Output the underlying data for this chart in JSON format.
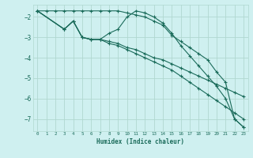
{
  "xlabel": "Humidex (Indice chaleur)",
  "background_color": "#cff0f0",
  "grid_color": "#b0d8d0",
  "line_color": "#1a6b5a",
  "xlim": [
    -0.5,
    23.5
  ],
  "ylim": [
    -7.6,
    -1.4
  ],
  "yticks": [
    -7,
    -6,
    -5,
    -4,
    -3,
    -2
  ],
  "xticks": [
    0,
    1,
    2,
    3,
    4,
    5,
    6,
    7,
    8,
    9,
    10,
    11,
    12,
    13,
    14,
    15,
    16,
    17,
    18,
    19,
    20,
    21,
    22,
    23
  ],
  "series": [
    {
      "x": [
        0,
        1,
        2,
        3,
        4,
        5,
        6,
        7,
        8,
        9,
        10,
        11,
        12,
        13,
        14,
        15,
        16,
        17,
        18,
        19,
        20,
        21,
        22,
        23
      ],
      "y": [
        -1.7,
        -1.7,
        -1.7,
        -1.7,
        -1.7,
        -1.7,
        -1.7,
        -1.7,
        -1.7,
        -1.7,
        -1.8,
        -1.9,
        -2.0,
        -2.2,
        -2.4,
        -2.9,
        -3.2,
        -3.5,
        -3.8,
        -4.1,
        -4.7,
        -5.2,
        -7.0,
        -7.4
      ]
    },
    {
      "x": [
        0,
        3,
        4,
        5,
        6,
        7,
        8,
        9,
        10,
        11,
        12,
        13,
        14,
        15,
        16,
        17,
        18,
        19,
        20,
        21,
        22,
        23
      ],
      "y": [
        -1.7,
        -2.6,
        -2.2,
        -3.0,
        -3.1,
        -3.1,
        -2.8,
        -2.6,
        -2.0,
        -1.7,
        -1.8,
        -2.0,
        -2.3,
        -2.8,
        -3.4,
        -3.9,
        -4.4,
        -4.9,
        -5.4,
        -6.0,
        -7.0,
        -7.4
      ]
    },
    {
      "x": [
        0,
        3,
        4,
        5,
        6,
        7,
        8,
        9,
        10,
        11,
        12,
        13,
        14,
        15,
        16,
        17,
        18,
        19,
        20,
        21,
        22,
        23
      ],
      "y": [
        -1.7,
        -2.6,
        -2.2,
        -3.0,
        -3.1,
        -3.1,
        -3.2,
        -3.3,
        -3.5,
        -3.6,
        -3.8,
        -4.0,
        -4.1,
        -4.3,
        -4.5,
        -4.7,
        -4.9,
        -5.1,
        -5.3,
        -5.5,
        -5.7,
        -5.9
      ]
    },
    {
      "x": [
        0,
        3,
        4,
        5,
        6,
        7,
        8,
        9,
        10,
        11,
        12,
        13,
        14,
        15,
        16,
        17,
        18,
        19,
        20,
        21,
        22,
        23
      ],
      "y": [
        -1.7,
        -2.6,
        -2.2,
        -3.0,
        -3.1,
        -3.1,
        -3.3,
        -3.4,
        -3.6,
        -3.8,
        -4.0,
        -4.2,
        -4.4,
        -4.6,
        -4.9,
        -5.2,
        -5.5,
        -5.8,
        -6.1,
        -6.4,
        -6.7,
        -7.0
      ]
    }
  ]
}
